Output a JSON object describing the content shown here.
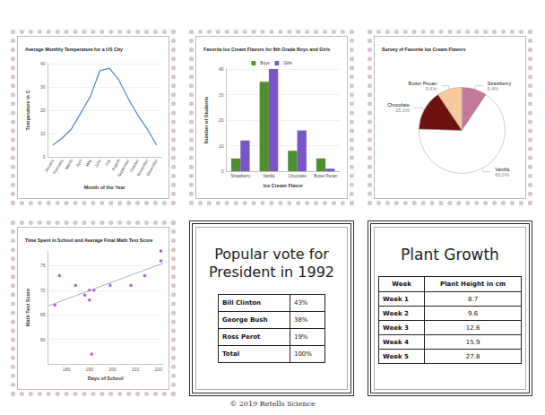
{
  "chart_data": [
    {
      "type": "line",
      "title": "Average Monthly Temperature for a US City",
      "x_label": "Month of the Year",
      "y_label": "Temperature in C",
      "categories": [
        "January",
        "February",
        "March",
        "April",
        "May",
        "June",
        "July",
        "August",
        "September",
        "October",
        "November",
        "December"
      ],
      "values": [
        5,
        8,
        12,
        19,
        26,
        37,
        38,
        33,
        25,
        18,
        12,
        5
      ],
      "color": "#4a86c8",
      "marker": "none",
      "ylim": [
        0,
        40
      ],
      "yticks": [
        0,
        10,
        20,
        30,
        40
      ],
      "grid": true
    },
    {
      "type": "bar",
      "title": "Favorite Ice Cream Flavors for 8th Grade Boys and Girls",
      "x_label": "Ice Cream Flavor",
      "y_label": "Number of Students",
      "categories": [
        "Strawberry",
        "Vanilla",
        "Chocolate",
        "Butter Pecan"
      ],
      "series": [
        {
          "name": "Boys",
          "color": "#4f8f2f",
          "values": [
            5,
            35,
            8,
            5
          ]
        },
        {
          "name": "Girls",
          "color": "#7a55c9",
          "values": [
            12,
            40,
            16,
            1
          ]
        }
      ],
      "ylim": [
        0,
        40
      ],
      "yticks": [
        0,
        10,
        20,
        30,
        40
      ],
      "legend": "top",
      "grid": true
    },
    {
      "type": "pie",
      "title": "Survey of Favorite Ice Cream Flavors",
      "categories": [
        "Strawberry",
        "Vanilla",
        "Chocolate",
        "Butter Pecan"
      ],
      "values": [
        9.4,
        66,
        15.1,
        9.4
      ],
      "value_labels": [
        "9.4%",
        "66.0%",
        "15.1%",
        "9.4%"
      ],
      "colors": [
        "#c4789a",
        "#ffffff",
        "#6e1111",
        "#f7c99c"
      ],
      "data_labels": true
    },
    {
      "type": "scatter",
      "title": "Time Spent in School and Average Final Math Test Score",
      "x_label": "Days of School",
      "y_label": "Math Test Score",
      "series": [
        {
          "type": "scatter",
          "color": "#9b35d4",
          "marker": "circle",
          "x": [
            175,
            177,
            184,
            188,
            190,
            190,
            191,
            192,
            199,
            208,
            214,
            221,
            221
          ],
          "values": [
            67,
            73,
            71,
            69,
            70,
            68,
            57,
            70,
            71,
            71,
            73,
            76,
            78
          ]
        },
        {
          "type": "line",
          "color": "#999999",
          "line_style": "solid",
          "x": [
            172,
            222
          ],
          "values": [
            66.8,
            75.5
          ]
        }
      ],
      "xlim": [
        172,
        222
      ],
      "xticks": [
        180,
        190,
        200,
        210,
        220
      ],
      "ylim": [
        55,
        78
      ],
      "yticks": [
        60,
        65,
        70,
        75
      ],
      "grid": true
    }
  ],
  "tables": [
    {
      "title": "Popular vote for President in 1992",
      "rows": [
        [
          "Bill Clinton",
          "43%"
        ],
        [
          "George Bush",
          "38%"
        ],
        [
          "Ross Perot",
          "19%"
        ],
        [
          "Total",
          "100%"
        ]
      ]
    },
    {
      "title": "Plant Growth",
      "header": [
        "Week",
        "Plant Height in cm"
      ],
      "rows": [
        [
          "Week 1",
          "8.7"
        ],
        [
          "Week 2",
          "9.6"
        ],
        [
          "Week 3",
          "12.6"
        ],
        [
          "Week 4",
          "15.9"
        ],
        [
          "Week 5",
          "27.8"
        ]
      ]
    }
  ],
  "footer": "© 2019 Retells Science"
}
